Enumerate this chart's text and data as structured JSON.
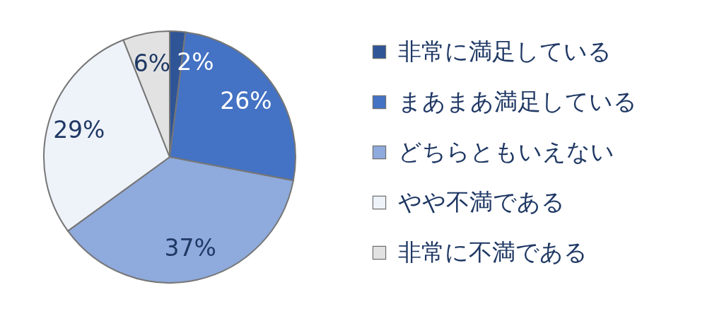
{
  "chart_data": {
    "type": "pie",
    "categories": [
      "非常に満足している",
      "まあまあ満足している",
      "どちらともいえない",
      "やや不満である",
      "非常に不満である"
    ],
    "values": [
      2,
      26,
      37,
      29,
      6
    ],
    "colors": [
      "#2f5597",
      "#4472c4",
      "#8faadc",
      "#eef2f9",
      "#e2e2e2"
    ],
    "value_labels": [
      "2%",
      "26%",
      "37%",
      "29%",
      "6%"
    ],
    "legend": "right"
  }
}
